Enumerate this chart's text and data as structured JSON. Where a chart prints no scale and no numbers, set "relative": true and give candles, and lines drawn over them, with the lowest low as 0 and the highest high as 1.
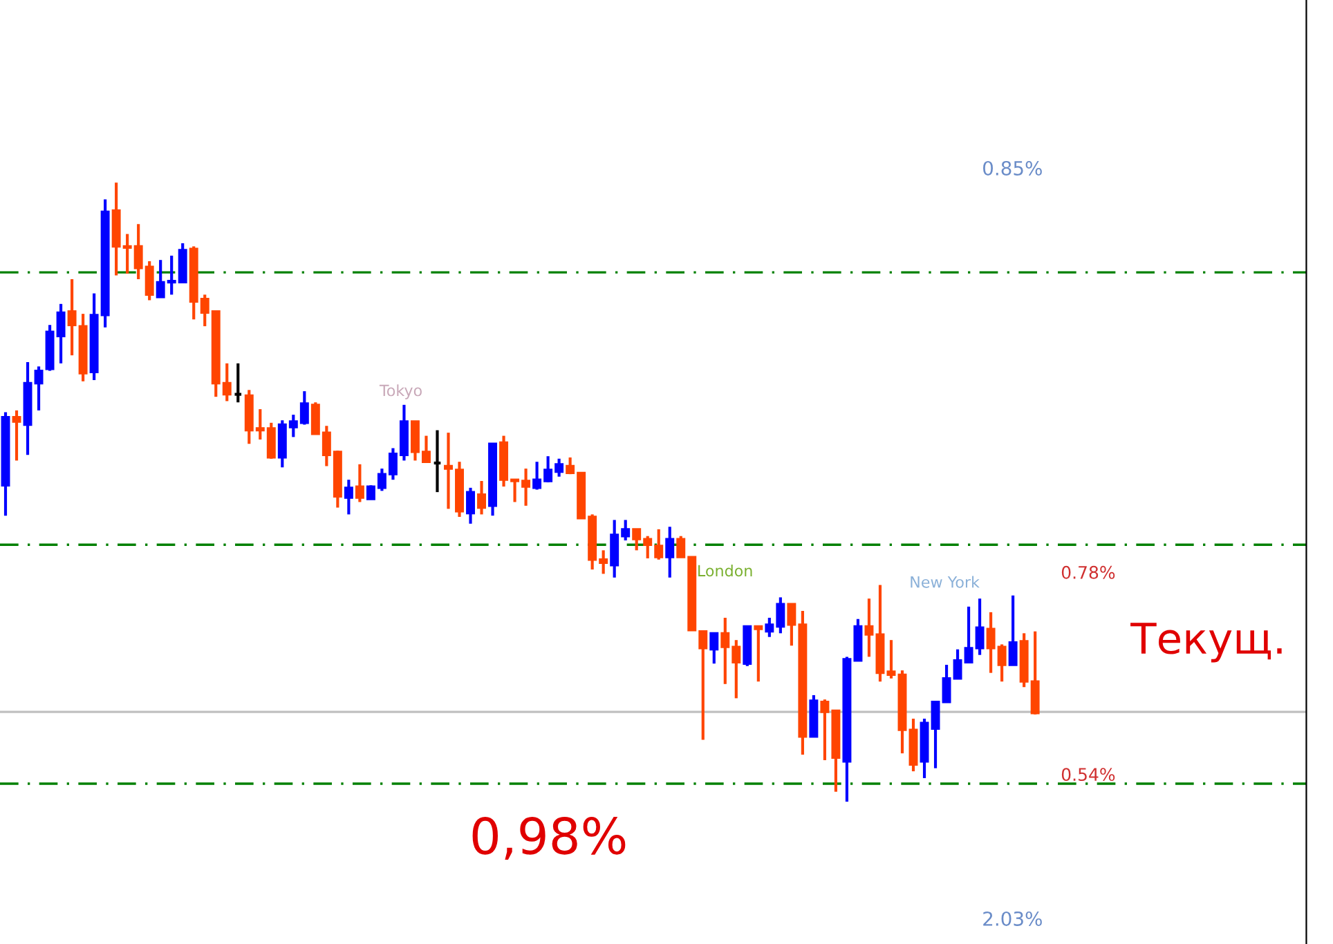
{
  "chart_data": {
    "type": "candlestick",
    "relative": true,
    "grid": false,
    "categories": [
      null,
      null,
      null,
      null,
      null,
      null,
      null,
      null,
      null,
      null,
      null,
      null,
      null,
      null,
      null,
      null,
      null,
      null,
      null,
      null,
      null,
      null,
      null,
      null,
      null,
      null,
      null,
      null,
      null,
      null,
      null,
      null,
      null,
      null,
      null,
      null,
      null,
      null,
      null,
      null,
      null,
      null,
      null,
      null,
      null,
      null,
      null,
      null,
      null,
      null,
      null,
      null,
      null,
      null,
      null,
      null,
      null,
      null,
      null,
      null,
      null,
      null,
      null,
      null,
      null,
      null,
      null,
      null,
      null,
      null,
      null,
      null,
      null,
      null,
      null,
      null,
      null,
      null,
      null,
      null,
      null,
      null,
      null,
      null,
      null,
      null,
      null,
      null,
      null,
      null,
      null,
      null,
      null,
      null
    ],
    "ohlc": [
      [
        0.511,
        0.629,
        0.462,
        0.621
      ],
      [
        0.621,
        0.632,
        0.551,
        0.614
      ],
      [
        0.609,
        0.71,
        0.56,
        0.676
      ],
      [
        0.676,
        0.703,
        0.632,
        0.696
      ],
      [
        0.699,
        0.77,
        0.696,
        0.759
      ],
      [
        0.752,
        0.804,
        0.708,
        0.79
      ],
      [
        0.792,
        0.844,
        0.721,
        0.77
      ],
      [
        0.768,
        0.788,
        0.679,
        0.692
      ],
      [
        0.694,
        0.821,
        0.681,
        0.786
      ],
      [
        0.786,
        0.973,
        0.766,
        0.953
      ],
      [
        0.955,
        1.0,
        0.85,
        0.897
      ],
      [
        0.897,
        0.917,
        0.853,
        0.895
      ],
      [
        0.897,
        0.933,
        0.844,
        0.862
      ],
      [
        0.864,
        0.873,
        0.81,
        0.819
      ],
      [
        0.815,
        0.875,
        0.815,
        0.839
      ],
      [
        0.839,
        0.882,
        0.819,
        0.841
      ],
      [
        0.839,
        0.902,
        0.839,
        0.891
      ],
      [
        0.893,
        0.897,
        0.779,
        0.808
      ],
      [
        0.812,
        0.819,
        0.768,
        0.79
      ],
      [
        0.792,
        0.792,
        0.654,
        0.676
      ],
      [
        0.676,
        0.708,
        0.647,
        0.658
      ],
      [
        0.658,
        0.708,
        0.645,
        0.658
      ],
      [
        0.656,
        0.665,
        0.578,
        0.6
      ],
      [
        0.603,
        0.634,
        0.585,
        0.6
      ],
      [
        0.603,
        0.612,
        0.554,
        0.556
      ],
      [
        0.556,
        0.616,
        0.54,
        0.609
      ],
      [
        0.605,
        0.625,
        0.589,
        0.614
      ],
      [
        0.612,
        0.663,
        0.609,
        0.643
      ],
      [
        0.641,
        0.645,
        0.594,
        0.594
      ],
      [
        0.596,
        0.607,
        0.542,
        0.56
      ],
      [
        0.565,
        0.567,
        0.475,
        0.493
      ],
      [
        0.491,
        0.52,
        0.464,
        0.507
      ],
      [
        0.509,
        0.545,
        0.484,
        0.491
      ],
      [
        0.489,
        0.511,
        0.489,
        0.509
      ],
      [
        0.507,
        0.538,
        0.502,
        0.529
      ],
      [
        0.529,
        0.571,
        0.52,
        0.562
      ],
      [
        0.56,
        0.641,
        0.551,
        0.614
      ],
      [
        0.614,
        0.614,
        0.551,
        0.565
      ],
      [
        0.565,
        0.591,
        0.547,
        0.549
      ],
      [
        0.547,
        0.6,
        0.5,
        0.547
      ],
      [
        0.542,
        0.596,
        0.473,
        0.538
      ],
      [
        0.536,
        0.549,
        0.46,
        0.469
      ],
      [
        0.466,
        0.507,
        0.449,
        0.5
      ],
      [
        0.496,
        0.518,
        0.464,
        0.475
      ],
      [
        0.478,
        0.578,
        0.462,
        0.578
      ],
      [
        0.58,
        0.591,
        0.509,
        0.52
      ],
      [
        0.52,
        0.52,
        0.484,
        0.518
      ],
      [
        0.518,
        0.538,
        0.478,
        0.509
      ],
      [
        0.507,
        0.549,
        0.504,
        0.52
      ],
      [
        0.518,
        0.558,
        0.516,
        0.536
      ],
      [
        0.533,
        0.554,
        0.525,
        0.545
      ],
      [
        0.542,
        0.556,
        0.529,
        0.531
      ],
      [
        0.531,
        0.531,
        0.458,
        0.458
      ],
      [
        0.46,
        0.464,
        0.375,
        0.391
      ],
      [
        0.391,
        0.406,
        0.368,
        0.386
      ],
      [
        0.382,
        0.455,
        0.362,
        0.431
      ],
      [
        0.429,
        0.455,
        0.422,
        0.44
      ],
      [
        0.44,
        0.44,
        0.406,
        0.424
      ],
      [
        0.424,
        0.429,
        0.393,
        0.415
      ],
      [
        0.413,
        0.44,
        0.391,
        0.395
      ],
      [
        0.395,
        0.444,
        0.362,
        0.424
      ],
      [
        0.424,
        0.429,
        0.395,
        0.395
      ],
      [
        0.395,
        0.395,
        0.277,
        0.277
      ],
      [
        0.275,
        0.275,
        0.1,
        0.248
      ],
      [
        0.246,
        0.272,
        0.223,
        0.272
      ],
      [
        0.272,
        0.297,
        0.19,
        0.25
      ],
      [
        0.25,
        0.261,
        0.167,
        0.225
      ],
      [
        0.223,
        0.283,
        0.219,
        0.283
      ],
      [
        0.283,
        0.283,
        0.194,
        0.279
      ],
      [
        0.275,
        0.297,
        0.266,
        0.286
      ],
      [
        0.283,
        0.33,
        0.272,
        0.319
      ],
      [
        0.319,
        0.319,
        0.252,
        0.286
      ],
      [
        0.286,
        0.308,
        0.076,
        0.105
      ],
      [
        0.105,
        0.172,
        0.105,
        0.163
      ],
      [
        0.161,
        0.165,
        0.067,
        0.145
      ],
      [
        0.147,
        0.147,
        0.016,
        0.071
      ],
      [
        0.065,
        0.234,
        0.0,
        0.23
      ],
      [
        0.228,
        0.295,
        0.228,
        0.283
      ],
      [
        0.283,
        0.328,
        0.234,
        0.27
      ],
      [
        0.27,
        0.35,
        0.194,
        0.208
      ],
      [
        0.21,
        0.261,
        0.199,
        0.205
      ],
      [
        0.205,
        0.212,
        0.078,
        0.116
      ],
      [
        0.116,
        0.134,
        0.049,
        0.06
      ],
      [
        0.065,
        0.134,
        0.038,
        0.127
      ],
      [
        0.118,
        0.161,
        0.054,
        0.161
      ],
      [
        0.161,
        0.221,
        0.161,
        0.199
      ],
      [
        0.199,
        0.246,
        0.199,
        0.228
      ],
      [
        0.225,
        0.315,
        0.225,
        0.248
      ],
      [
        0.248,
        0.328,
        0.237,
        0.281
      ],
      [
        0.279,
        0.306,
        0.208,
        0.248
      ],
      [
        0.25,
        0.254,
        0.194,
        0.221
      ],
      [
        0.221,
        0.333,
        0.221,
        0.257
      ],
      [
        0.259,
        0.272,
        0.185,
        0.194
      ],
      [
        0.194,
        0.275,
        0.141,
        0.143
      ]
    ],
    "colors": [
      "#0000ff",
      "#ff4500",
      "#0000ff",
      "#0000ff",
      "#0000ff",
      "#0000ff",
      "#ff4500",
      "#ff4500",
      "#0000ff",
      "#0000ff",
      "#ff4500",
      "#ff4500",
      "#ff4500",
      "#ff4500",
      "#0000ff",
      "#0000ff",
      "#0000ff",
      "#ff4500",
      "#ff4500",
      "#ff4500",
      "#ff4500",
      "#000000",
      "#ff4500",
      "#ff4500",
      "#ff4500",
      "#0000ff",
      "#0000ff",
      "#0000ff",
      "#ff4500",
      "#ff4500",
      "#ff4500",
      "#0000ff",
      "#ff4500",
      "#0000ff",
      "#0000ff",
      "#0000ff",
      "#0000ff",
      "#ff4500",
      "#ff4500",
      "#000000",
      "#ff4500",
      "#ff4500",
      "#0000ff",
      "#ff4500",
      "#0000ff",
      "#ff4500",
      "#ff4500",
      "#ff4500",
      "#0000ff",
      "#0000ff",
      "#0000ff",
      "#ff4500",
      "#ff4500",
      "#ff4500",
      "#ff4500",
      "#0000ff",
      "#0000ff",
      "#ff4500",
      "#ff4500",
      "#ff4500",
      "#0000ff",
      "#ff4500",
      "#ff4500",
      "#ff4500",
      "#0000ff",
      "#ff4500",
      "#ff4500",
      "#0000ff",
      "#ff4500",
      "#0000ff",
      "#0000ff",
      "#ff4500",
      "#ff4500",
      "#0000ff",
      "#ff4500",
      "#ff4500",
      "#0000ff",
      "#0000ff",
      "#ff4500",
      "#ff4500",
      "#ff4500",
      "#ff4500",
      "#ff4500",
      "#0000ff",
      "#0000ff",
      "#0000ff",
      "#0000ff",
      "#0000ff",
      "#0000ff",
      "#ff4500",
      "#ff4500",
      "#0000ff",
      "#ff4500",
      "#ff4500"
    ],
    "ref_lines": [
      {
        "axis": "y",
        "value": 0.855,
        "color": "#008000",
        "line_style": "dashed"
      },
      {
        "axis": "y",
        "value": 0.415,
        "color": "#008000",
        "line_style": "dashed"
      },
      {
        "axis": "y",
        "value": 0.029,
        "color": "#008000",
        "line_style": "dashed"
      },
      {
        "axis": "y",
        "value": 0.145,
        "color": "#c0c0c0",
        "line_style": "solid"
      }
    ],
    "annotations": [
      "0.85%",
      "Tokyo",
      "London",
      "New York",
      "0.78%",
      "0.54%",
      "2.03%",
      "0,98%",
      "Текущ."
    ]
  }
}
